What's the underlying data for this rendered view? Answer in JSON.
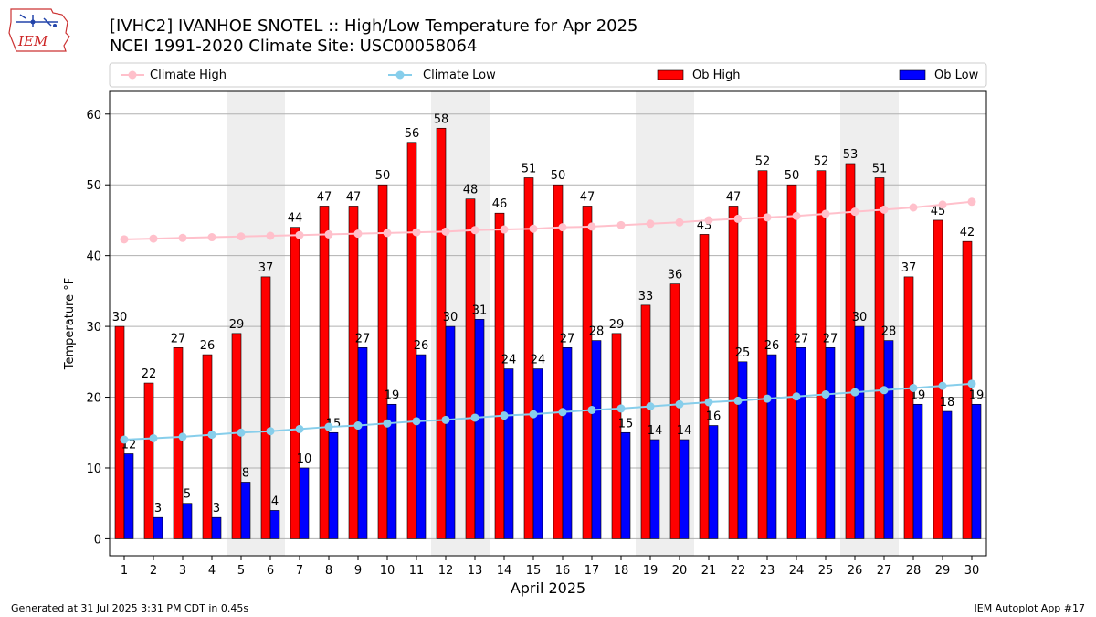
{
  "header": {
    "title_line1": "[IVHC2] IVANHOE SNOTEL :: High/Low Temperature for Apr 2025",
    "title_line2": "NCEI 1991-2020 Climate Site: USC00058064",
    "logo_text": "IEM"
  },
  "footer": {
    "generated": "Generated at 31 Jul 2025 3:31 PM CDT in 0.45s",
    "app": "IEM Autoplot App #17"
  },
  "colors": {
    "ob_high": "#ff0000",
    "ob_low": "#0000ff",
    "climate_high": "#ffc0cb",
    "climate_low": "#87ceeb",
    "weekend_shade": "#eeeeee",
    "grid": "#b0b0b0"
  },
  "chart_data": {
    "type": "bar",
    "xlabel": "April 2025",
    "ylabel": "Temperature °F",
    "ylim": [
      -2.4,
      63.2
    ],
    "yticks": [
      0,
      10,
      20,
      30,
      40,
      50,
      60
    ],
    "grid": "horizontal",
    "legend_position": "top",
    "categories": [
      "1",
      "2",
      "3",
      "4",
      "5",
      "6",
      "7",
      "8",
      "9",
      "10",
      "11",
      "12",
      "13",
      "14",
      "15",
      "16",
      "17",
      "18",
      "19",
      "20",
      "21",
      "22",
      "23",
      "24",
      "25",
      "26",
      "27",
      "28",
      "29",
      "30"
    ],
    "shaded_days": [
      5,
      6,
      12,
      13,
      19,
      20,
      26,
      27
    ],
    "series": [
      {
        "name": "Ob High",
        "kind": "bar",
        "color": "#ff0000",
        "values": [
          30,
          22,
          27,
          26,
          29,
          37,
          44,
          47,
          47,
          50,
          56,
          58,
          48,
          46,
          51,
          50,
          47,
          29,
          33,
          36,
          43,
          47,
          52,
          50,
          52,
          53,
          51,
          37,
          45,
          42
        ]
      },
      {
        "name": "Ob Low",
        "kind": "bar",
        "color": "#0000ff",
        "values": [
          12,
          3,
          5,
          3,
          8,
          4,
          10,
          15,
          27,
          19,
          26,
          30,
          31,
          24,
          24,
          27,
          28,
          15,
          14,
          14,
          16,
          25,
          26,
          27,
          27,
          30,
          28,
          19,
          18,
          19
        ]
      },
      {
        "name": "Climate High",
        "kind": "line",
        "color": "#ffc0cb",
        "values": [
          42.3,
          42.4,
          42.5,
          42.6,
          42.7,
          42.8,
          42.9,
          43.0,
          43.1,
          43.2,
          43.3,
          43.4,
          43.6,
          43.7,
          43.8,
          44.0,
          44.1,
          44.3,
          44.5,
          44.7,
          45.0,
          45.2,
          45.4,
          45.6,
          45.9,
          46.2,
          46.5,
          46.8,
          47.2,
          47.6
        ]
      },
      {
        "name": "Climate Low",
        "kind": "line",
        "color": "#87ceeb",
        "values": [
          14.0,
          14.2,
          14.4,
          14.7,
          15.0,
          15.2,
          15.5,
          15.8,
          16.0,
          16.3,
          16.6,
          16.8,
          17.1,
          17.4,
          17.6,
          17.9,
          18.2,
          18.4,
          18.7,
          19.0,
          19.3,
          19.5,
          19.8,
          20.1,
          20.4,
          20.7,
          21.0,
          21.3,
          21.6,
          21.9
        ]
      }
    ],
    "legend_order": [
      "Climate High",
      "Climate Low",
      "Ob High",
      "Ob Low"
    ]
  }
}
